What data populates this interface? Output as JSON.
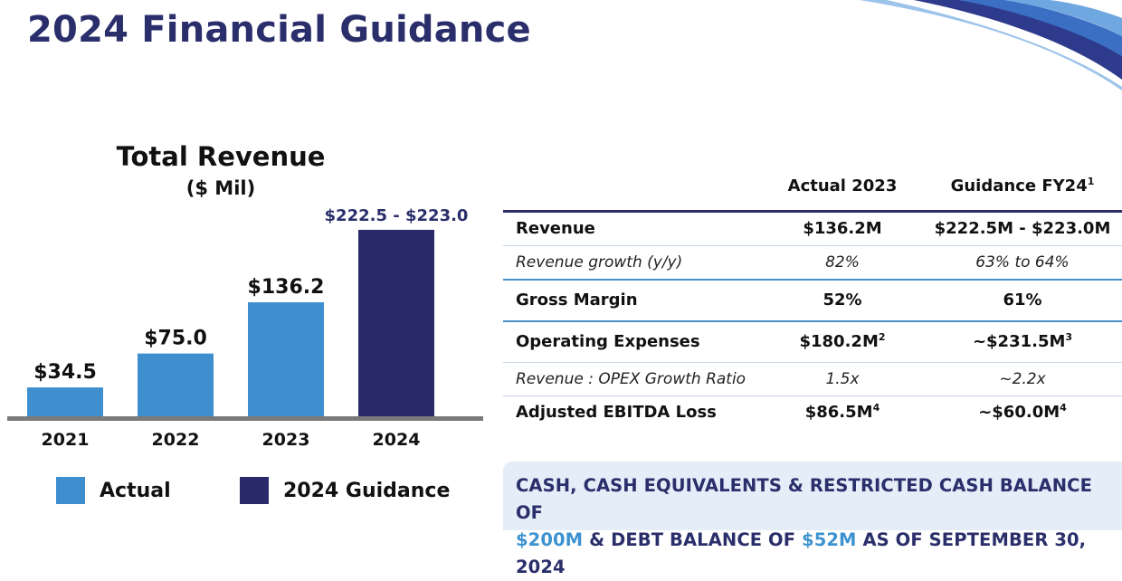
{
  "page": {
    "title": "2024 Financial Guidance"
  },
  "colors": {
    "actual": "#3f8fcf",
    "guidance": "#2a2a6b",
    "title": "#2a2f6b",
    "axis": "#7a7a7a",
    "highlight": "#3d93d0",
    "callout_bg": "#e4edf8"
  },
  "chart_data": {
    "type": "bar",
    "title": "Total Revenue",
    "subtitle": "($ Mil)",
    "categories": [
      "2021",
      "2022",
      "2023",
      "2024"
    ],
    "values": [
      34.5,
      75.0,
      136.2,
      222.75
    ],
    "range_2024": [
      222.5,
      223.0
    ],
    "value_labels": [
      "$34.5",
      "$75.0",
      "$136.2",
      "$222.5 - $223.0"
    ],
    "series_kind": [
      "actual",
      "actual",
      "actual",
      "guidance"
    ],
    "legend": [
      "Actual",
      "2024 Guidance"
    ],
    "legend_placement": "bottom",
    "grid": false,
    "ylim": [
      0,
      240
    ]
  },
  "table": {
    "headers": [
      "",
      "Actual 2023",
      "Guidance FY24"
    ],
    "header_footnote": "1",
    "rows": [
      {
        "label": "Revenue",
        "actual": "$136.2M",
        "actual_note": "",
        "guidance": "$222.5M - $223.0M",
        "guidance_note": "",
        "style": "main"
      },
      {
        "label": "Revenue growth (y/y)",
        "actual": "82%",
        "actual_note": "",
        "guidance": "63% to 64%",
        "guidance_note": "",
        "style": "sub"
      },
      {
        "label": "Gross Margin",
        "actual": "52%",
        "actual_note": "",
        "guidance": "61%",
        "guidance_note": "",
        "style": "main"
      },
      {
        "label": "Operating Expenses",
        "actual": "$180.2M",
        "actual_note": "2",
        "guidance": "~$231.5M",
        "guidance_note": "3",
        "style": "main"
      },
      {
        "label": "Revenue : OPEX Growth Ratio",
        "actual": "1.5x",
        "actual_note": "",
        "guidance": "~2.2x",
        "guidance_note": "",
        "style": "sub"
      },
      {
        "label": "Adjusted EBITDA Loss",
        "actual": "$86.5M",
        "actual_note": "4",
        "guidance": "~$60.0M",
        "guidance_note": "4",
        "style": "main"
      }
    ]
  },
  "callout": {
    "part1": "CASH, CASH EQUIVALENTS & RESTRICTED CASH BALANCE OF",
    "cash": "$200M",
    "part2": "& DEBT BALANCE OF",
    "debt": "$52M",
    "part3": "AS OF SEPTEMBER 30, 2024"
  }
}
